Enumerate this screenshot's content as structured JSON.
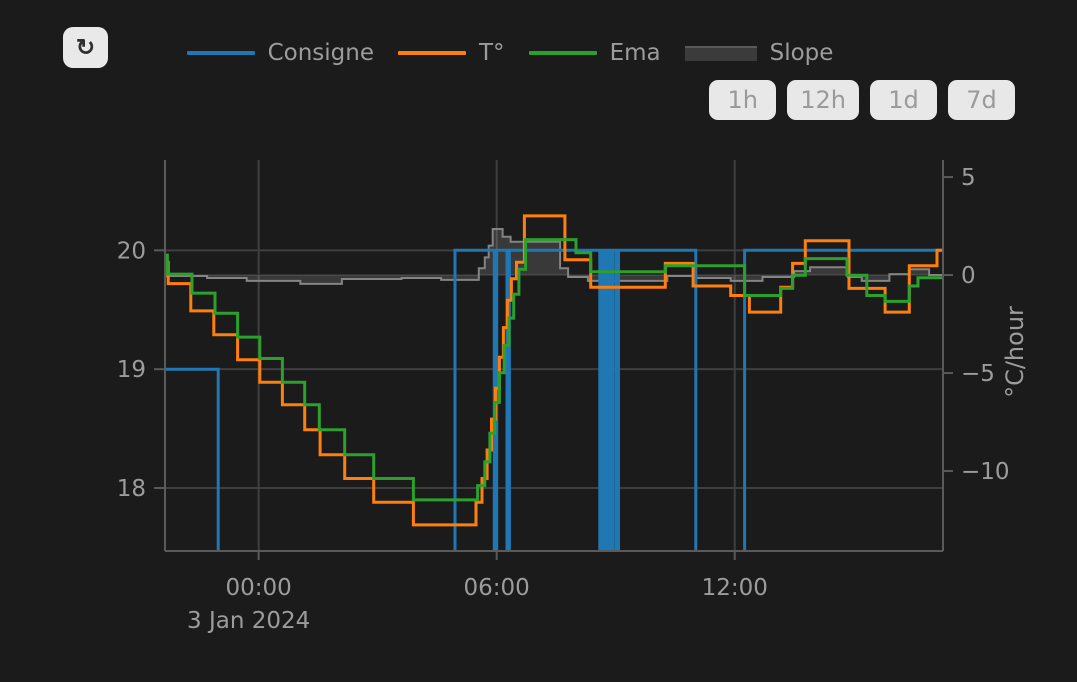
{
  "toolbar": {
    "refresh_icon": "↻",
    "range_buttons": [
      {
        "label": "1h"
      },
      {
        "label": "12h"
      },
      {
        "label": "1d"
      },
      {
        "label": "7d"
      }
    ]
  },
  "legend": {
    "items": [
      {
        "label": "Consigne",
        "color": "#1f77b4",
        "type": "line"
      },
      {
        "label": "T°",
        "color": "#ff7f0e",
        "type": "line"
      },
      {
        "label": "Ema",
        "color": "#2ca02c",
        "type": "line"
      },
      {
        "label": "Slope",
        "color": "#3b3b3b",
        "type": "area"
      }
    ]
  },
  "chart_data": {
    "type": "line",
    "title": "",
    "x_date_label": "3 Jan 2024",
    "x_domain_hours": [
      -2.36,
      17.25
    ],
    "x_ticks": [
      {
        "t": 0,
        "label": "00:00"
      },
      {
        "t": 6,
        "label": "06:00"
      },
      {
        "t": 12,
        "label": "12:00"
      }
    ],
    "temp_axis": {
      "range": [
        17.47,
        20.76
      ],
      "ticks": [
        {
          "v": 20,
          "label": "20"
        },
        {
          "v": 19,
          "label": "19"
        },
        {
          "v": 18,
          "label": "18"
        }
      ]
    },
    "slope_axis": {
      "title": "°C/hour",
      "range": [
        -14.08,
        5.87
      ],
      "ticks": [
        {
          "v": 5,
          "label": "5"
        },
        {
          "v": 0,
          "label": "0"
        },
        {
          "v": -5,
          "label": "−5"
        },
        {
          "v": -10,
          "label": "−10"
        }
      ]
    },
    "grid_color": "#3f3f3f",
    "axis_line_color": "#5a5a5a",
    "tick_label_color": "#9c9c9c",
    "series": [
      {
        "id": "slope",
        "name": "Slope",
        "axis": "slope",
        "color": "#848484",
        "fill": "rgba(180,180,180,0.20)",
        "width": 2,
        "points": [
          [
            -2.36,
            -0.05
          ],
          [
            -1.3,
            -0.15
          ],
          [
            -0.3,
            -0.3
          ],
          [
            1.05,
            -0.45
          ],
          [
            2.1,
            -0.2
          ],
          [
            3.6,
            -0.15
          ],
          [
            4.6,
            -0.25
          ],
          [
            5.55,
            0.35
          ],
          [
            5.7,
            0.9
          ],
          [
            5.8,
            1.5
          ],
          [
            5.9,
            2.35
          ],
          [
            6.15,
            1.95
          ],
          [
            6.35,
            1.7
          ],
          [
            7.6,
            0.35
          ],
          [
            7.8,
            -0.1
          ],
          [
            8.3,
            -0.3
          ],
          [
            10.3,
            -0.05
          ],
          [
            11.0,
            -0.15
          ],
          [
            11.9,
            -0.3
          ],
          [
            12.7,
            -0.1
          ],
          [
            13.5,
            0.2
          ],
          [
            13.9,
            0.4
          ],
          [
            14.85,
            -0.1
          ],
          [
            15.2,
            -0.3
          ],
          [
            15.9,
            0.05
          ],
          [
            16.4,
            0.3
          ],
          [
            16.9,
            0.0
          ]
        ]
      },
      {
        "id": "consigne",
        "name": "Consigne",
        "axis": "temp",
        "color": "#1f77b4",
        "width": 3,
        "points": [
          [
            -2.36,
            19
          ],
          [
            -1.02,
            16.5
          ],
          [
            4.95,
            20
          ],
          [
            5.94,
            16.5
          ],
          [
            6.0,
            20
          ],
          [
            6.26,
            16.5
          ],
          [
            6.32,
            20
          ],
          [
            8.6,
            16.5
          ],
          [
            8.65,
            20
          ],
          [
            8.7,
            16.5
          ],
          [
            8.75,
            20
          ],
          [
            8.79,
            16.5
          ],
          [
            8.84,
            20
          ],
          [
            8.89,
            16.5
          ],
          [
            8.94,
            20
          ],
          [
            9.02,
            16.5
          ],
          [
            9.07,
            20
          ],
          [
            11.02,
            16.5
          ],
          [
            12.25,
            20
          ]
        ]
      },
      {
        "id": "temperature",
        "name": "T°",
        "axis": "temp",
        "color": "#ff7f0e",
        "width": 3,
        "points": [
          [
            -2.36,
            19.9
          ],
          [
            -2.28,
            19.72
          ],
          [
            -1.71,
            19.49
          ],
          [
            -1.13,
            19.29
          ],
          [
            -0.53,
            19.08
          ],
          [
            0.03,
            18.89
          ],
          [
            0.6,
            18.7
          ],
          [
            1.16,
            18.49
          ],
          [
            1.55,
            18.28
          ],
          [
            2.17,
            18.08
          ],
          [
            2.9,
            17.88
          ],
          [
            3.9,
            17.69
          ],
          [
            5.48,
            17.88
          ],
          [
            5.63,
            18.08
          ],
          [
            5.76,
            18.32
          ],
          [
            5.87,
            18.58
          ],
          [
            5.97,
            18.84
          ],
          [
            6.07,
            19.1
          ],
          [
            6.17,
            19.35
          ],
          [
            6.27,
            19.58
          ],
          [
            6.37,
            19.76
          ],
          [
            6.5,
            19.9
          ],
          [
            6.7,
            20.29
          ],
          [
            7.72,
            19.92
          ],
          [
            8.37,
            19.69
          ],
          [
            10.25,
            19.89
          ],
          [
            10.95,
            19.7
          ],
          [
            11.9,
            19.62
          ],
          [
            12.37,
            19.48
          ],
          [
            13.16,
            19.69
          ],
          [
            13.46,
            19.89
          ],
          [
            13.78,
            20.08
          ],
          [
            14.88,
            19.68
          ],
          [
            15.79,
            19.48
          ],
          [
            16.4,
            19.87
          ],
          [
            17.1,
            20.0
          ]
        ]
      },
      {
        "id": "ema",
        "name": "Ema",
        "axis": "temp",
        "color": "#2ca02c",
        "width": 3,
        "points": [
          [
            -2.36,
            19.96
          ],
          [
            -2.3,
            19.8
          ],
          [
            -1.68,
            19.64
          ],
          [
            -1.1,
            19.47
          ],
          [
            -0.53,
            19.27
          ],
          [
            0.03,
            19.09
          ],
          [
            0.6,
            18.89
          ],
          [
            1.16,
            18.7
          ],
          [
            1.53,
            18.49
          ],
          [
            2.17,
            18.28
          ],
          [
            2.9,
            18.08
          ],
          [
            3.9,
            17.9
          ],
          [
            5.52,
            18.02
          ],
          [
            5.7,
            18.22
          ],
          [
            5.83,
            18.46
          ],
          [
            5.95,
            18.72
          ],
          [
            6.07,
            18.97
          ],
          [
            6.19,
            19.2
          ],
          [
            6.31,
            19.43
          ],
          [
            6.43,
            19.63
          ],
          [
            6.56,
            19.84
          ],
          [
            6.73,
            20.09
          ],
          [
            8.0,
            19.98
          ],
          [
            8.37,
            19.82
          ],
          [
            10.25,
            19.87
          ],
          [
            12.25,
            19.62
          ],
          [
            13.16,
            19.68
          ],
          [
            13.46,
            19.79
          ],
          [
            13.78,
            19.93
          ],
          [
            14.83,
            19.79
          ],
          [
            15.33,
            19.62
          ],
          [
            15.79,
            19.57
          ],
          [
            16.4,
            19.7
          ],
          [
            16.62,
            19.77
          ]
        ]
      }
    ]
  }
}
